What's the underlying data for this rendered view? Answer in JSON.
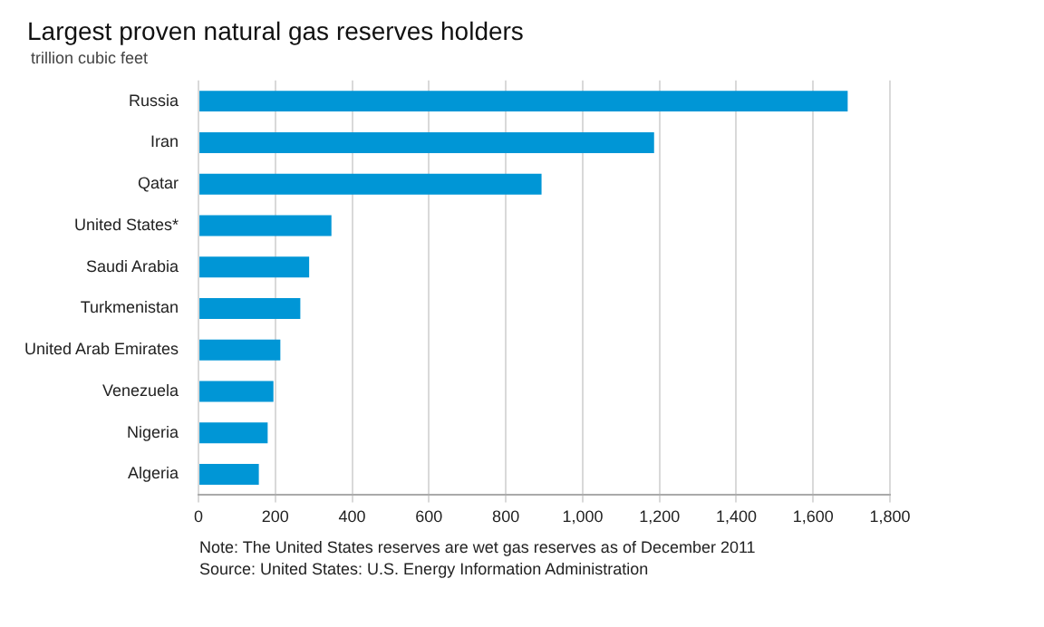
{
  "chart_data": {
    "type": "bar",
    "orientation": "horizontal",
    "title": "Largest proven natural gas reserves holders",
    "subtitle": "trillion cubic feet",
    "categories": [
      "Russia",
      "Iran",
      "Qatar",
      "United States*",
      "Saudi Arabia",
      "Turkmenistan",
      "United Arab Emirates",
      "Venezuela",
      "Nigeria",
      "Algeria"
    ],
    "values": [
      1690,
      1186,
      893,
      346,
      288,
      265,
      213,
      195,
      180,
      157
    ],
    "color": "#0096d6",
    "xlim": [
      0,
      1800
    ],
    "xticks": [
      0,
      {
        "value": 200,
        "label": "200"
      },
      {
        "value": 400,
        "label": "400"
      },
      {
        "value": 600,
        "label": "600"
      },
      {
        "value": 800,
        "label": "800"
      },
      {
        "value": 1000,
        "label": "1,000"
      },
      {
        "value": 1200,
        "label": "1,200"
      },
      {
        "value": 1400,
        "label": "1,400"
      },
      {
        "value": 1600,
        "label": "1,600"
      },
      {
        "value": 1800,
        "label": "1,800"
      }
    ],
    "grid": "x",
    "legend": false,
    "annotations": [
      "Note: The United States reserves are wet gas reserves as of December 2011",
      "Source: United States: U.S. Energy Information Administration"
    ]
  }
}
